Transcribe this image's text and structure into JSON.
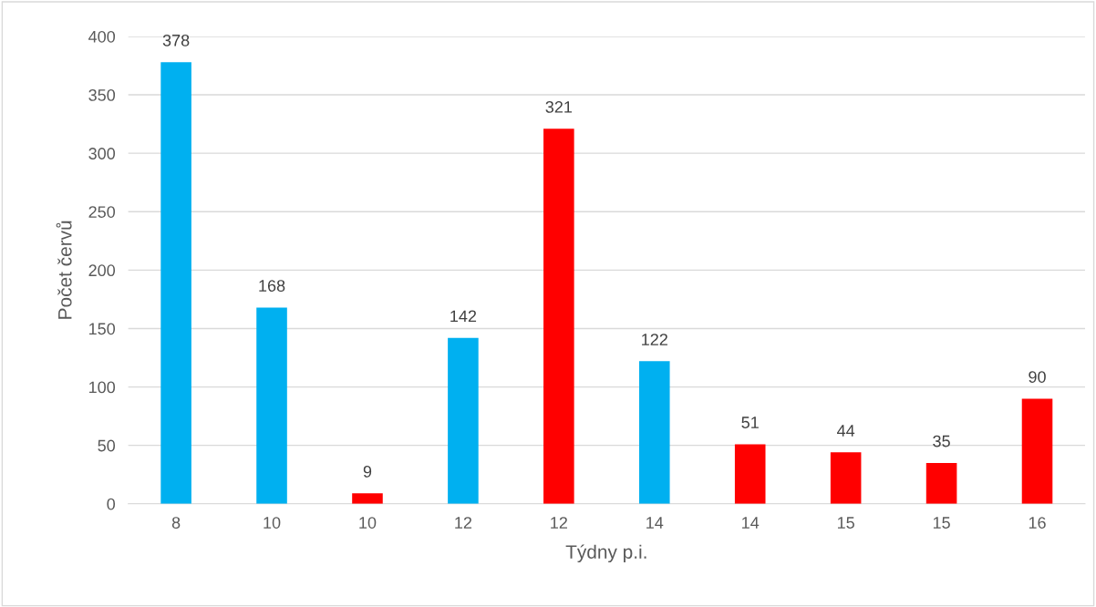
{
  "chart_data": {
    "type": "bar",
    "xlabel": "Týdny p.i.",
    "ylabel": "Počet červů",
    "categories": [
      "8",
      "10",
      "10",
      "12",
      "12",
      "14",
      "14",
      "15",
      "15",
      "16"
    ],
    "values": [
      378,
      168,
      9,
      142,
      321,
      122,
      51,
      44,
      35,
      90
    ],
    "colors": [
      "#00b0f0",
      "#00b0f0",
      "#ff0000",
      "#00b0f0",
      "#ff0000",
      "#00b0f0",
      "#ff0000",
      "#ff0000",
      "#ff0000",
      "#ff0000"
    ],
    "ylim": [
      0,
      400
    ],
    "yticks": [
      0,
      50,
      100,
      150,
      200,
      250,
      300,
      350,
      400
    ],
    "grid": "y",
    "data_labels": true
  }
}
